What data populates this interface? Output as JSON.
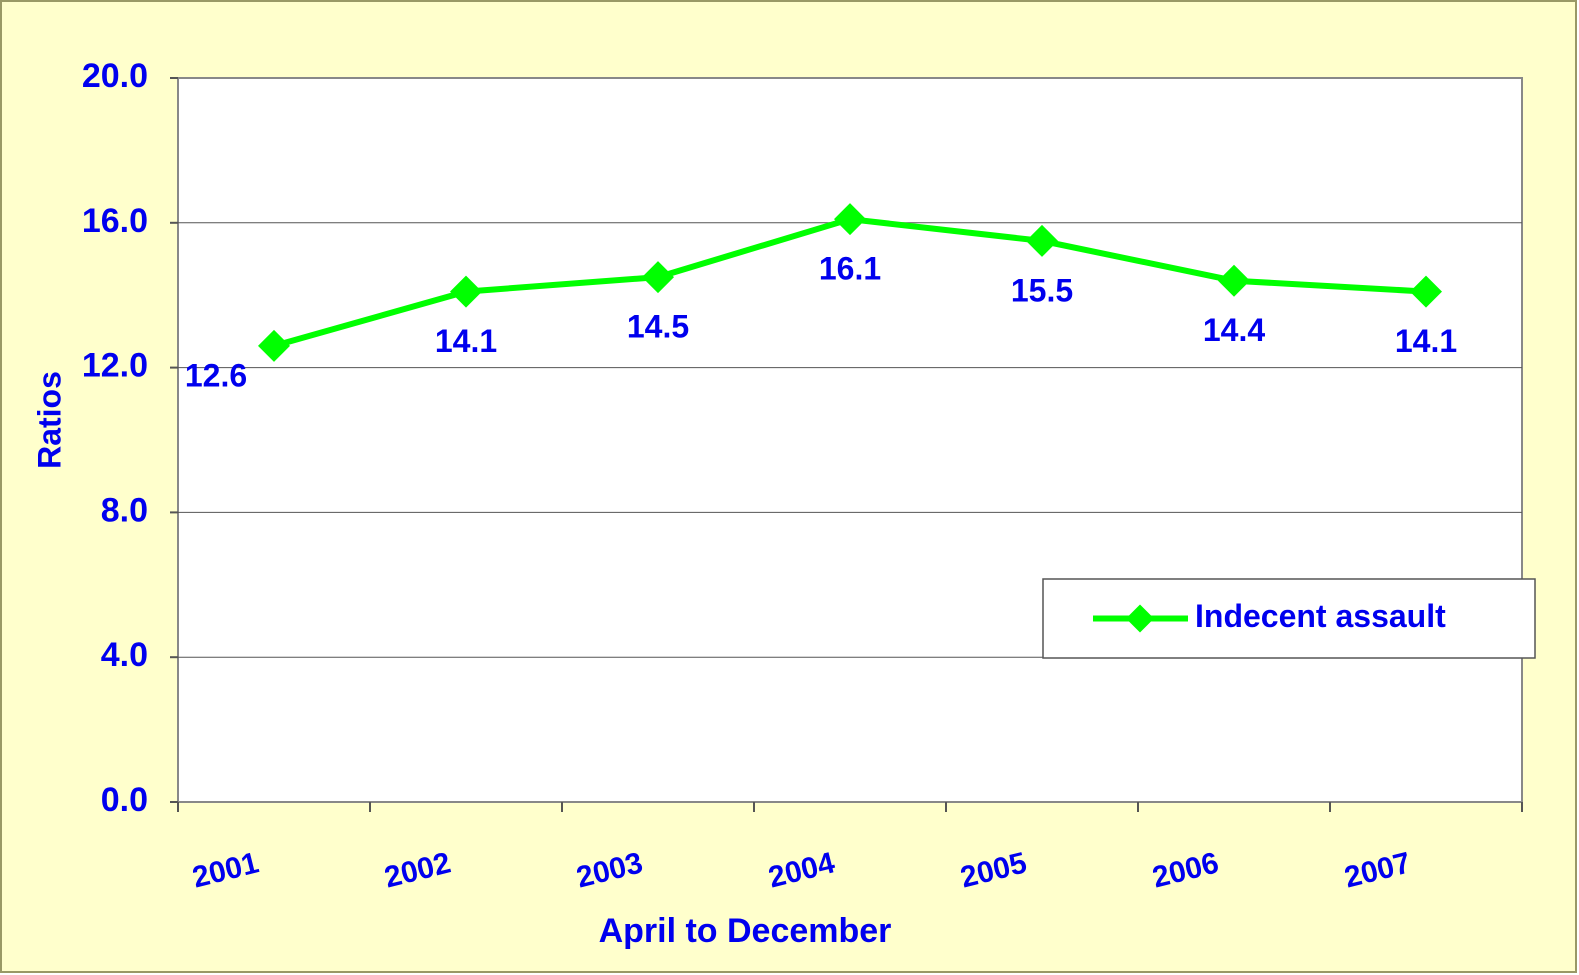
{
  "chart_data": {
    "type": "line",
    "x_label": "April to December",
    "y_label": "Ratios",
    "categories": [
      "2001",
      "2002",
      "2003",
      "2004",
      "2005",
      "2006",
      "2007"
    ],
    "series": [
      {
        "name": "Indecent assault",
        "color": "#00ff00",
        "values": [
          12.6,
          14.1,
          14.5,
          16.1,
          15.5,
          14.4,
          14.1
        ]
      }
    ],
    "ylim": [
      0,
      20
    ],
    "yticks": [
      {
        "value": 0,
        "label": "0.0"
      },
      {
        "value": 4,
        "label": "4.0"
      },
      {
        "value": 8,
        "label": "8.0"
      },
      {
        "value": 12,
        "label": "12.0"
      },
      {
        "value": 16,
        "label": "16.0"
      },
      {
        "value": 20,
        "label": "20.0"
      }
    ],
    "grid": true,
    "legend": "right"
  }
}
